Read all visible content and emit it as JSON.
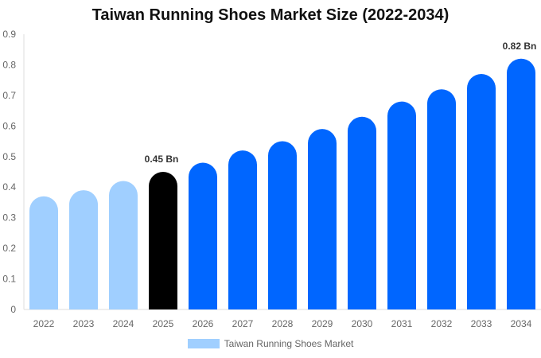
{
  "chart_data": {
    "type": "bar",
    "title": "Taiwan Running Shoes Market Size (2022-2034)",
    "categories": [
      "2022",
      "2023",
      "2024",
      "2025",
      "2026",
      "2027",
      "2028",
      "2029",
      "2030",
      "2031",
      "2032",
      "2033",
      "2034"
    ],
    "series": [
      {
        "name": "Taiwan Running Shoes Market",
        "values": [
          0.37,
          0.39,
          0.42,
          0.45,
          0.48,
          0.52,
          0.55,
          0.59,
          0.63,
          0.68,
          0.72,
          0.77,
          0.82
        ]
      }
    ],
    "ylim": [
      0,
      0.9
    ],
    "yticks": [
      "0",
      "0.1",
      "0.2",
      "0.3",
      "0.4",
      "0.5",
      "0.6",
      "0.7",
      "0.8",
      "0.9"
    ],
    "data_labels": [
      {
        "index": 3,
        "text": "0.45 Bn"
      },
      {
        "index": 12,
        "text": "0.82 Bn"
      }
    ],
    "colors": {
      "historical": "#a0cfff",
      "current": "#000000",
      "forecast": "#0066ff"
    },
    "legend": "bottom",
    "grid": false
  }
}
